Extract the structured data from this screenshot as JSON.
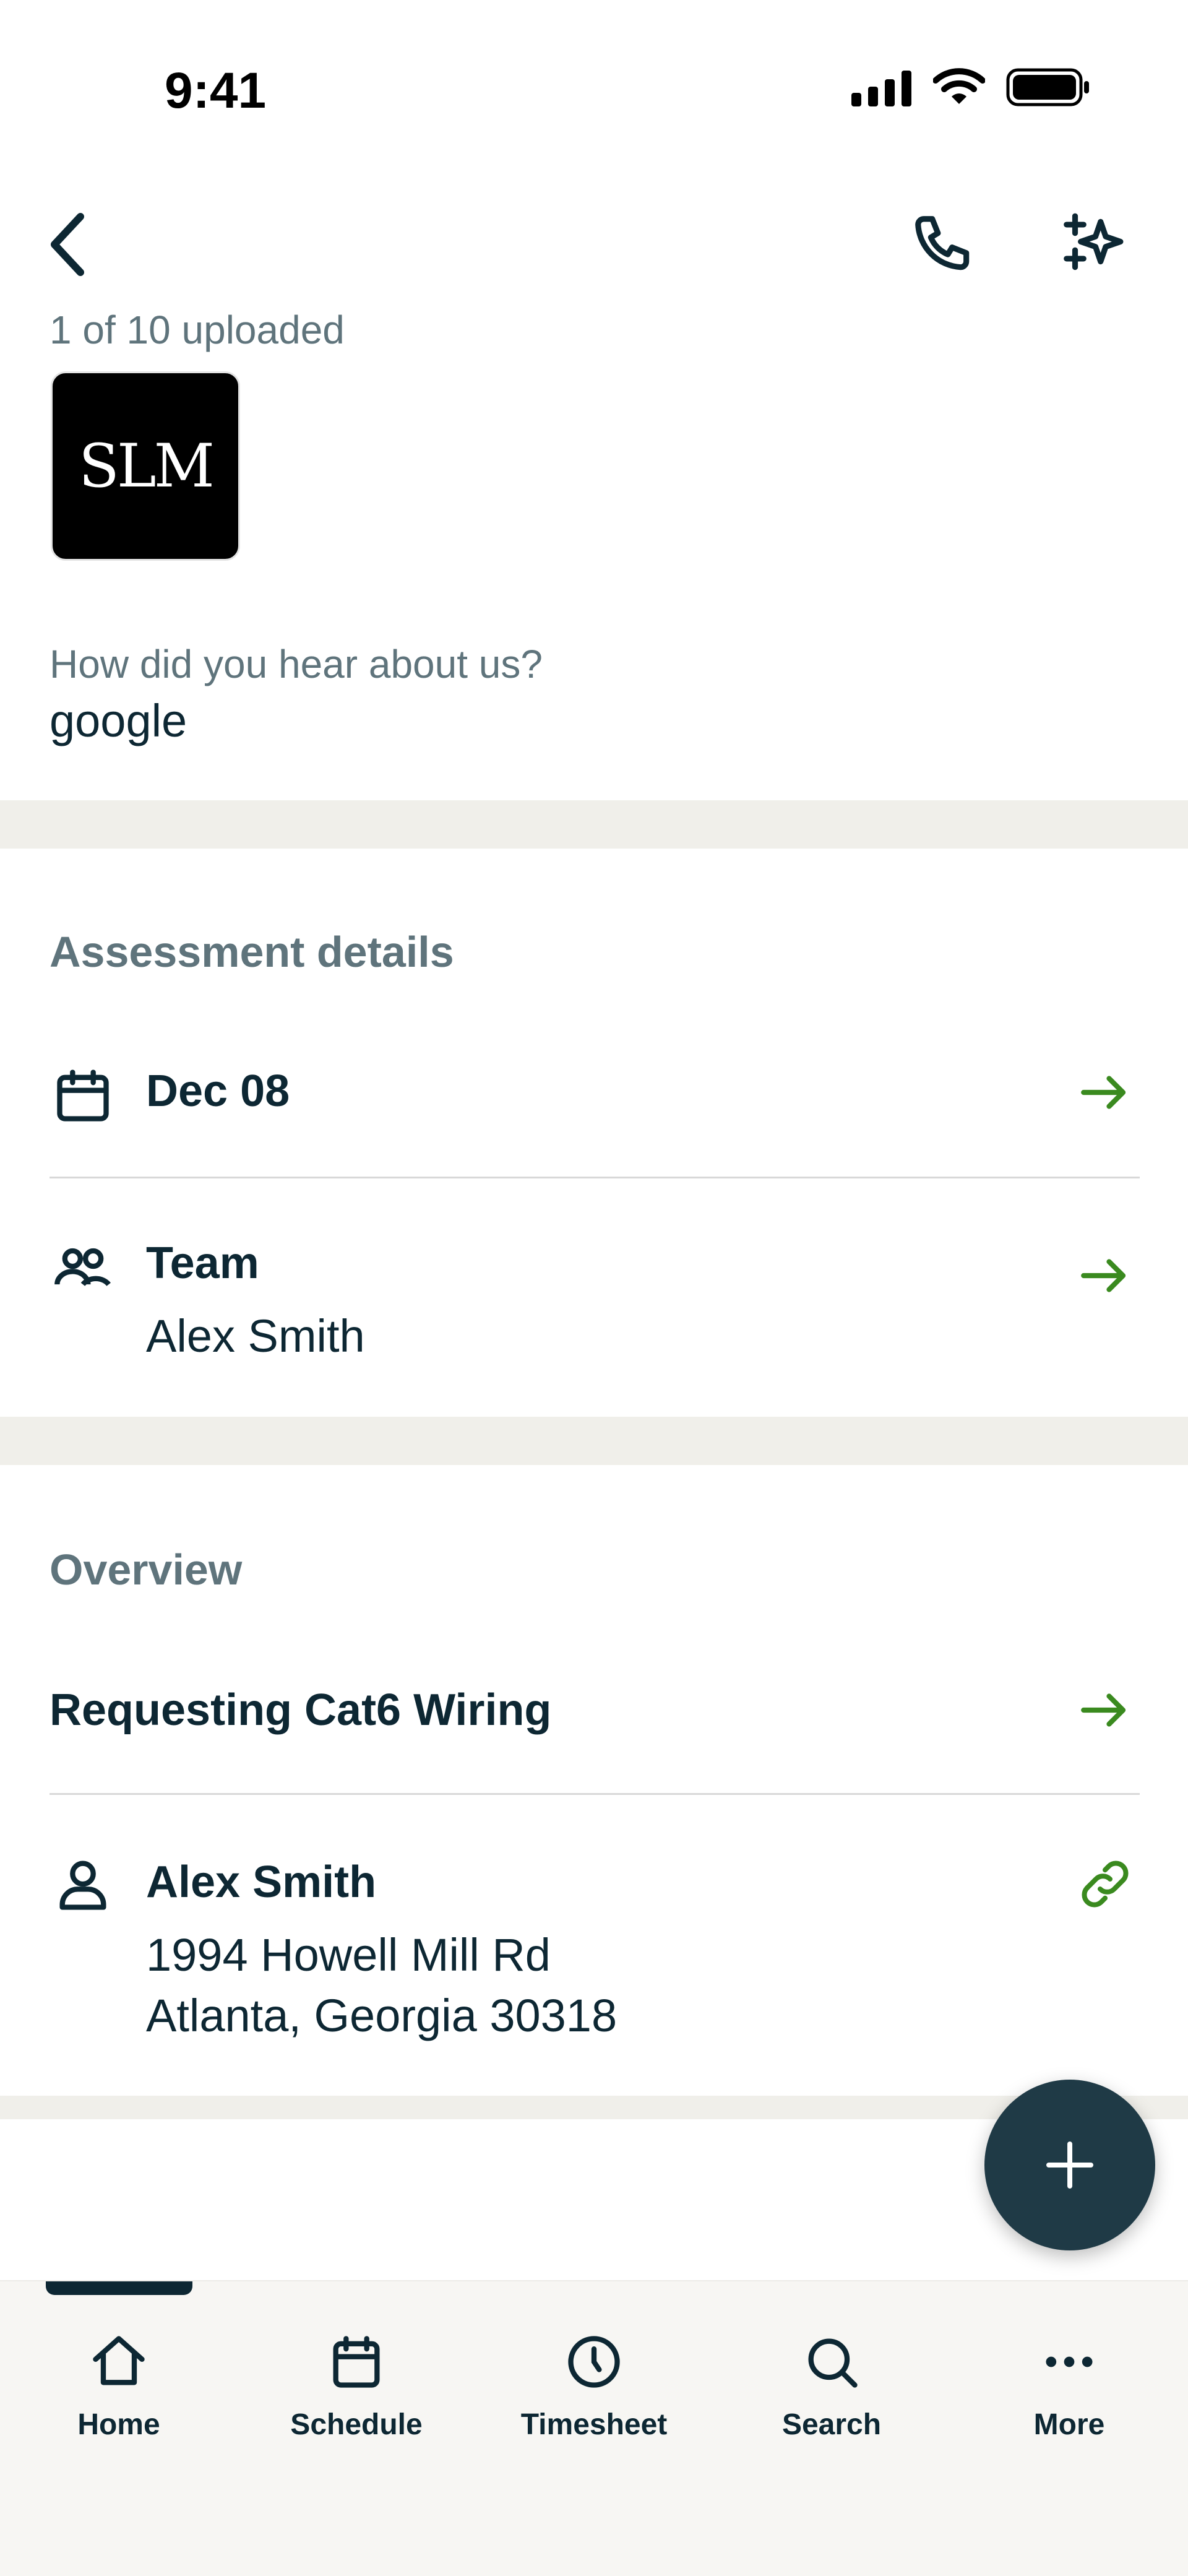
{
  "status_bar": {
    "time": "9:41"
  },
  "header": {
    "upload_status": "1 of 10 uploaded",
    "logo_text": "SLM"
  },
  "referral": {
    "question": "How did you hear about us?",
    "answer": "google"
  },
  "assessment": {
    "title": "Assessment details",
    "date": "Dec 08",
    "team_label": "Team",
    "team_member": "Alex Smith"
  },
  "overview": {
    "title": "Overview",
    "request": "Requesting Cat6 Wiring",
    "client_name": "Alex Smith",
    "address_line1": "1994 Howell Mill Rd",
    "address_line2": "Atlanta, Georgia 30318"
  },
  "nav": {
    "items": [
      {
        "label": "Home",
        "icon": "home-icon",
        "active": true
      },
      {
        "label": "Schedule",
        "icon": "calendar-icon"
      },
      {
        "label": "Timesheet",
        "icon": "clock-icon"
      },
      {
        "label": "Search",
        "icon": "search-icon"
      },
      {
        "label": "More",
        "icon": "more-icon"
      }
    ]
  },
  "colors": {
    "accent": "#3a8a1f",
    "primary": "#0d2733",
    "fab": "#1f3a46",
    "band": "#f0efea"
  }
}
